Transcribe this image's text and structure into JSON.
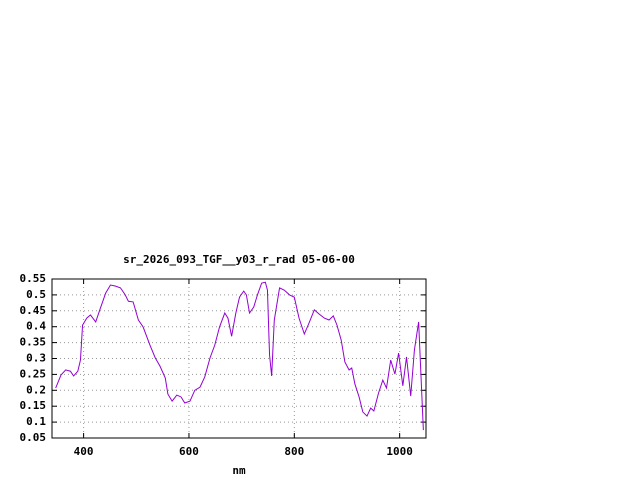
{
  "chart_data": {
    "type": "line",
    "title": "sr_2026_093_TGF__y03_r_rad 05-06-00",
    "x_label": "nm",
    "x": [
      347,
      357,
      366,
      375,
      381,
      389,
      394,
      398,
      406,
      413,
      423,
      432,
      442,
      451,
      460,
      470,
      479,
      485,
      494,
      504,
      513,
      526,
      536,
      545,
      555,
      560,
      568,
      577,
      585,
      592,
      602,
      611,
      621,
      630,
      640,
      649,
      658,
      668,
      674,
      681,
      689,
      696,
      704,
      709,
      715,
      723,
      730,
      738,
      745,
      749,
      753,
      757,
      762,
      772,
      781,
      791,
      800,
      809,
      819,
      828,
      838,
      847,
      857,
      866,
      874,
      881,
      889,
      896,
      904,
      909,
      915,
      923,
      930,
      938,
      945,
      951,
      960,
      968,
      975,
      983,
      991,
      998,
      1006,
      1013,
      1021,
      1028,
      1036,
      1045
    ],
    "series": [
      {
        "color": "#9400d3",
        "values": [
          0.207,
          0.248,
          0.264,
          0.26,
          0.245,
          0.26,
          0.295,
          0.405,
          0.427,
          0.437,
          0.415,
          0.459,
          0.506,
          0.531,
          0.528,
          0.522,
          0.5,
          0.48,
          0.478,
          0.421,
          0.399,
          0.342,
          0.302,
          0.276,
          0.239,
          0.188,
          0.166,
          0.185,
          0.179,
          0.16,
          0.166,
          0.2,
          0.21,
          0.242,
          0.302,
          0.342,
          0.399,
          0.443,
          0.427,
          0.37,
          0.443,
          0.493,
          0.512,
          0.5,
          0.443,
          0.462,
          0.5,
          0.537,
          0.54,
          0.515,
          0.311,
          0.245,
          0.421,
          0.522,
          0.515,
          0.5,
          0.493,
          0.427,
          0.377,
          0.412,
          0.453,
          0.44,
          0.427,
          0.421,
          0.434,
          0.405,
          0.358,
          0.289,
          0.264,
          0.27,
          0.22,
          0.179,
          0.132,
          0.119,
          0.144,
          0.135,
          0.192,
          0.232,
          0.207,
          0.295,
          0.251,
          0.317,
          0.214,
          0.305,
          0.182,
          0.327,
          0.415,
          0.075
        ]
      }
    ],
    "xlim": [
      340,
      1050
    ],
    "xticks": [
      400,
      600,
      800,
      1000
    ],
    "ylim": [
      0.05,
      0.55
    ],
    "yticks": [
      0.05,
      0.1,
      0.15,
      0.2,
      0.25,
      0.3,
      0.35,
      0.4,
      0.45,
      0.5,
      0.55
    ],
    "grid": true
  }
}
